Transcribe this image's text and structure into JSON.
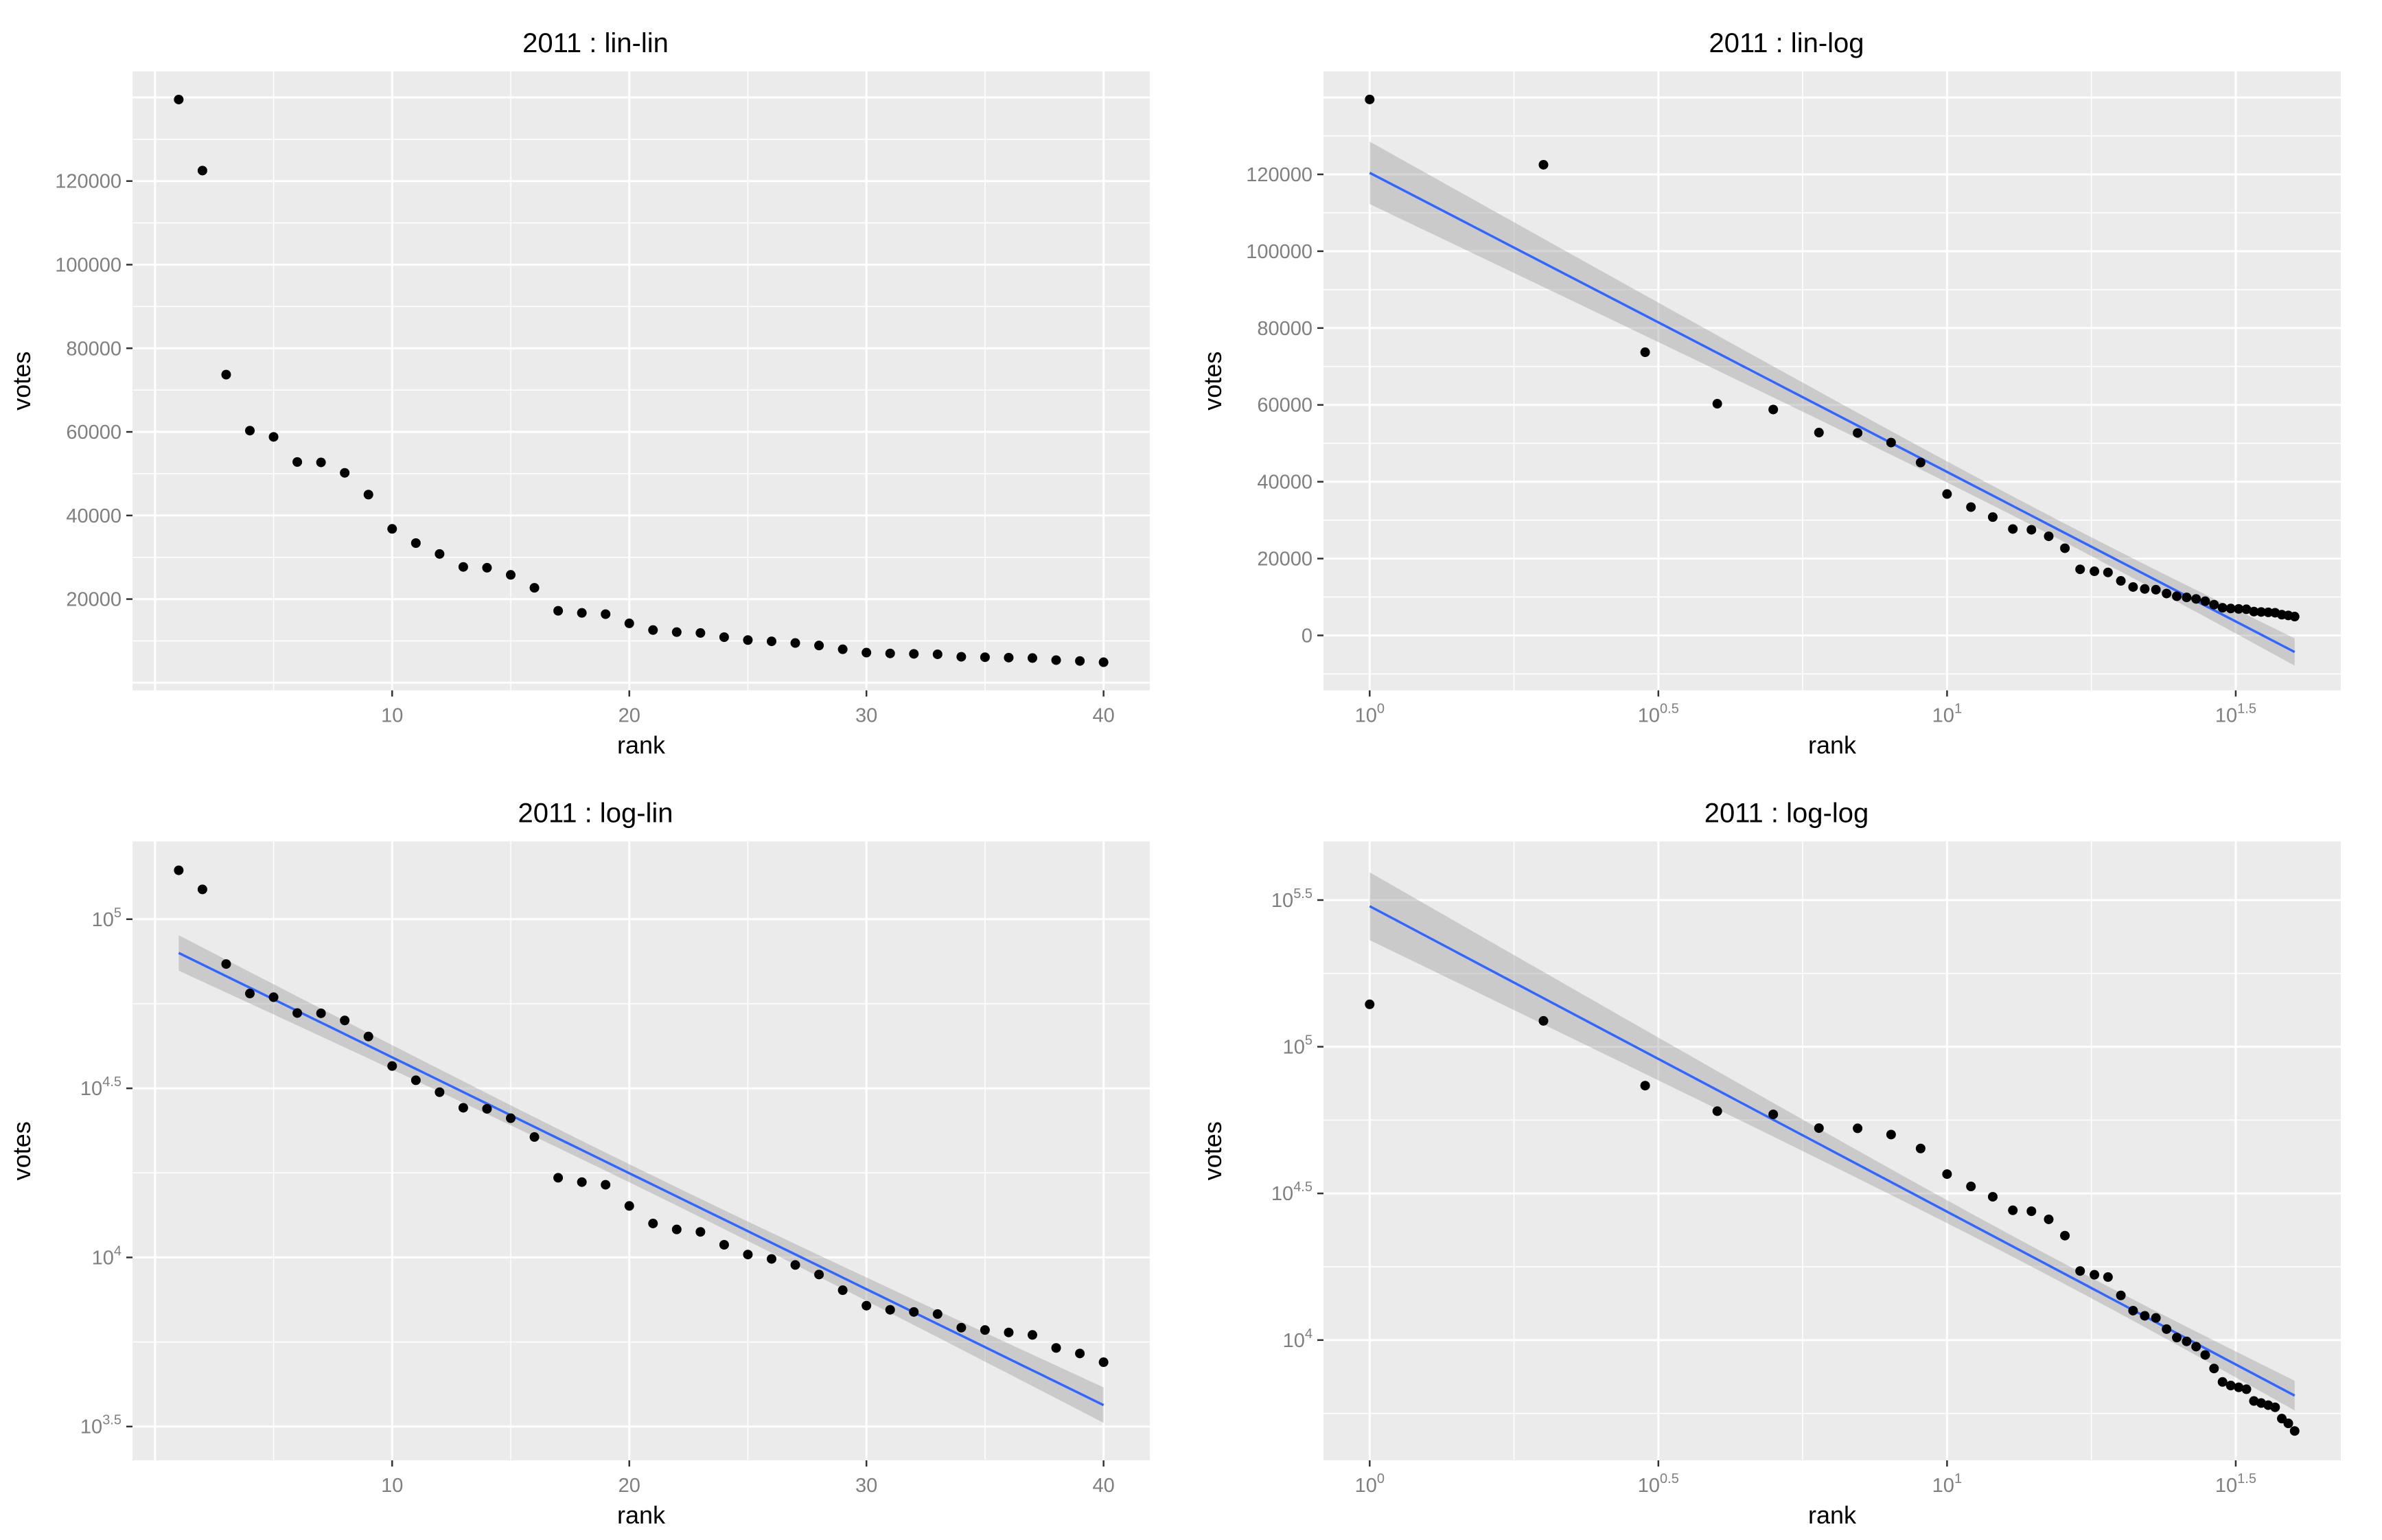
{
  "figure": {
    "title_color": "#000000",
    "axis_title_color": "#000000",
    "tick_label_color": "#7F7F7F",
    "tick_mark_color": "#333333",
    "panel_bg": "#EBEBEB",
    "grid_major_color": "#FFFFFF",
    "grid_minor_color": "#FFFFFF",
    "point_color": "#000000",
    "smooth_line_color": "#3366FF",
    "band_fill": "#999999",
    "band_opacity": 0.4,
    "background": "#FFFFFF"
  },
  "chart_data": {
    "type": "scatter",
    "xlabel": "rank",
    "ylabel": "votes",
    "x": [
      1,
      2,
      3,
      4,
      5,
      6,
      7,
      8,
      9,
      10,
      11,
      12,
      13,
      14,
      15,
      16,
      17,
      18,
      19,
      20,
      21,
      22,
      23,
      24,
      25,
      26,
      27,
      28,
      29,
      30,
      31,
      32,
      33,
      34,
      35,
      36,
      37,
      38,
      39,
      40
    ],
    "series": [
      {
        "name": "votes 2011",
        "values": [
          139500,
          122500,
          73700,
          60300,
          58800,
          52800,
          52700,
          50200,
          45000,
          36800,
          33400,
          30800,
          27700,
          27500,
          25800,
          22700,
          17200,
          16700,
          16400,
          14200,
          12600,
          12100,
          11900,
          10900,
          10200,
          9900,
          9500,
          8900,
          8000,
          7200,
          7000,
          6900,
          6800,
          6200,
          6100,
          6000,
          5900,
          5400,
          5200,
          4900
        ]
      }
    ],
    "smooth": {
      "method": "lm",
      "level": 0.95,
      "t_crit": 2.024,
      "steps": 60
    },
    "legend": "none",
    "grid": "on",
    "panels": [
      {
        "id": "lin-lin",
        "title": "2011 : lin-lin",
        "xscale": "linear",
        "yscale": "linear",
        "smooth": false,
        "xlim": [
          -0.95,
          41.95
        ],
        "ylim": [
          -1830,
          146230
        ],
        "x_major": [
          0,
          10,
          20,
          30,
          40
        ],
        "x_minor": [
          5,
          15,
          25,
          35
        ],
        "x_labels": [
          {
            "v": 10,
            "t": "10"
          },
          {
            "v": 20,
            "t": "20"
          },
          {
            "v": 30,
            "t": "30"
          },
          {
            "v": 40,
            "t": "40"
          }
        ],
        "y_major": [
          0,
          20000,
          40000,
          60000,
          80000,
          100000,
          120000,
          140000
        ],
        "y_minor": [
          10000,
          30000,
          50000,
          70000,
          90000,
          110000,
          130000
        ],
        "y_labels": [
          {
            "v": 20000,
            "t": "20000"
          },
          {
            "v": 40000,
            "t": "40000"
          },
          {
            "v": 60000,
            "t": "60000"
          },
          {
            "v": 80000,
            "t": "80000"
          },
          {
            "v": 100000,
            "t": "100000"
          },
          {
            "v": 120000,
            "t": "120000"
          }
        ]
      },
      {
        "id": "lin-log",
        "title": "2011 : lin-log",
        "xscale": "log",
        "yscale": "linear",
        "smooth": true,
        "xlim": [
          -0.08,
          1.682
        ],
        "ylim": [
          -14300,
          146800
        ],
        "x_major": [
          0,
          0.5,
          1,
          1.5
        ],
        "x_minor": [
          0.25,
          0.75,
          1.25
        ],
        "x_labels": [
          {
            "v": 0,
            "t": "10",
            "sup": "0"
          },
          {
            "v": 0.5,
            "t": "10",
            "sup": "0.5"
          },
          {
            "v": 1,
            "t": "10",
            "sup": "1"
          },
          {
            "v": 1.5,
            "t": "10",
            "sup": "1.5"
          }
        ],
        "y_major": [
          0,
          20000,
          40000,
          60000,
          80000,
          100000,
          120000,
          140000
        ],
        "y_minor": [
          -10000,
          10000,
          30000,
          50000,
          70000,
          90000,
          110000,
          130000
        ],
        "y_labels": [
          {
            "v": 0,
            "t": "0"
          },
          {
            "v": 20000,
            "t": "20000"
          },
          {
            "v": 40000,
            "t": "40000"
          },
          {
            "v": 60000,
            "t": "60000"
          },
          {
            "v": 80000,
            "t": "80000"
          },
          {
            "v": 100000,
            "t": "100000"
          },
          {
            "v": 120000,
            "t": "120000"
          }
        ]
      },
      {
        "id": "log-lin",
        "title": "2011 : log-lin",
        "xscale": "linear",
        "yscale": "log",
        "smooth": true,
        "xlim": [
          -0.95,
          41.95
        ],
        "ylim": [
          3.4,
          5.23
        ],
        "x_major": [
          0,
          10,
          20,
          30,
          40
        ],
        "x_minor": [
          5,
          15,
          25,
          35
        ],
        "x_labels": [
          {
            "v": 10,
            "t": "10"
          },
          {
            "v": 20,
            "t": "20"
          },
          {
            "v": 30,
            "t": "30"
          },
          {
            "v": 40,
            "t": "40"
          }
        ],
        "y_major": [
          3.5,
          4,
          4.5,
          5
        ],
        "y_minor": [
          3.75,
          4.25,
          4.75
        ],
        "y_labels": [
          {
            "v": 3.5,
            "t": "10",
            "sup": "3.5"
          },
          {
            "v": 4,
            "t": "10",
            "sup": "4"
          },
          {
            "v": 4.5,
            "t": "10",
            "sup": "4.5"
          },
          {
            "v": 5,
            "t": "10",
            "sup": "5"
          }
        ]
      },
      {
        "id": "log-log",
        "title": "2011 : log-log",
        "xscale": "log",
        "yscale": "log",
        "smooth": true,
        "xlim": [
          -0.08,
          1.682
        ],
        "ylim": [
          3.59,
          5.7
        ],
        "x_major": [
          0,
          0.5,
          1,
          1.5
        ],
        "x_minor": [
          0.25,
          0.75,
          1.25
        ],
        "x_labels": [
          {
            "v": 0,
            "t": "10",
            "sup": "0"
          },
          {
            "v": 0.5,
            "t": "10",
            "sup": "0.5"
          },
          {
            "v": 1,
            "t": "10",
            "sup": "1"
          },
          {
            "v": 1.5,
            "t": "10",
            "sup": "1.5"
          }
        ],
        "y_major": [
          4,
          4.5,
          5,
          5.5
        ],
        "y_minor": [
          3.75,
          4.25,
          4.75,
          5.25
        ],
        "y_labels": [
          {
            "v": 4,
            "t": "10",
            "sup": "4"
          },
          {
            "v": 4.5,
            "t": "10",
            "sup": "4.5"
          },
          {
            "v": 5,
            "t": "10",
            "sup": "5"
          },
          {
            "v": 5.5,
            "t": "10",
            "sup": "5.5"
          }
        ]
      }
    ]
  }
}
